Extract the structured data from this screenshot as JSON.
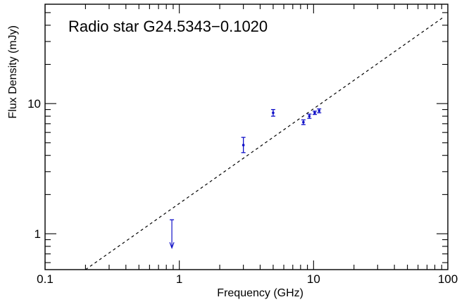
{
  "chart_data": {
    "type": "scatter",
    "title": "Radio star G24.5343−0.1020",
    "xlabel": "Frequency (GHz)",
    "ylabel": "Flux Density (mJy)",
    "xscale": "log",
    "yscale": "log",
    "xlim": [
      0.1,
      100
    ],
    "ylim": [
      0.53,
      58
    ],
    "x_ticks": [
      {
        "value": 0.1,
        "label": "0.1"
      },
      {
        "value": 1,
        "label": "1"
      },
      {
        "value": 10,
        "label": "10"
      },
      {
        "value": 100,
        "label": "100"
      }
    ],
    "y_ticks": [
      {
        "value": 1,
        "label": "1"
      },
      {
        "value": 10,
        "label": "10"
      }
    ],
    "grid": false,
    "legend": "none",
    "series": [
      {
        "color": "#1010c8",
        "points": [
          {
            "x": 3.0,
            "y": 4.8,
            "err_lo": 0.6,
            "err_hi": 0.7
          },
          {
            "x": 5.0,
            "y": 8.5,
            "err_lo": 0.5,
            "err_hi": 0.5
          },
          {
            "x": 8.4,
            "y": 7.2,
            "err_lo": 0.3,
            "err_hi": 0.3
          },
          {
            "x": 9.3,
            "y": 8.0,
            "err_lo": 0.3,
            "err_hi": 0.3
          },
          {
            "x": 10.2,
            "y": 8.5,
            "err_lo": 0.25,
            "err_hi": 0.25
          },
          {
            "x": 11.0,
            "y": 8.8,
            "err_lo": 0.3,
            "err_hi": 0.3
          }
        ]
      }
    ],
    "upper_limits": [
      {
        "x": 0.88,
        "y": 1.28,
        "color": "#1010c8"
      }
    ],
    "fit_line": {
      "style": "dashed",
      "color": "#000000",
      "points": [
        [
          0.2,
          0.53
        ],
        [
          93,
          46.2
        ]
      ]
    }
  }
}
